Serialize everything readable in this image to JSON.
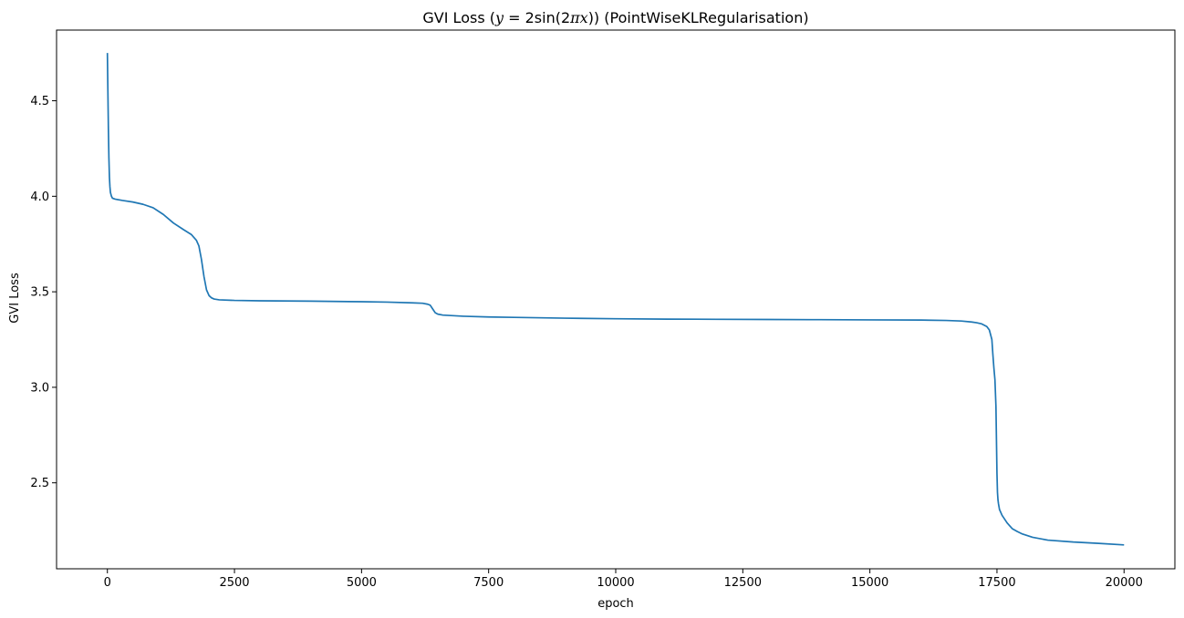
{
  "chart_data": {
    "type": "line",
    "title": {
      "prefix": "GVI Loss (",
      "math_y": "y",
      "math_mid": " = 2sin(2",
      "math_pi": "π",
      "math_x": "x",
      "suffix": ")) (PointWiseKLRegularisation)"
    },
    "xlabel": "epoch",
    "ylabel": "GVI Loss",
    "xlim": [
      -1000,
      21000
    ],
    "ylim": [
      2.05,
      4.87
    ],
    "xticks": [
      0,
      2500,
      5000,
      7500,
      10000,
      12500,
      15000,
      17500,
      20000
    ],
    "xtick_labels": [
      "0",
      "2500",
      "5000",
      "7500",
      "10000",
      "12500",
      "15000",
      "17500",
      "20000"
    ],
    "yticks": [
      2.5,
      3.0,
      3.5,
      4.0,
      4.5
    ],
    "ytick_labels": [
      "2.5",
      "3.0",
      "3.5",
      "4.0",
      "4.5"
    ],
    "grid": false,
    "color": "#1f77b4",
    "series": [
      {
        "x": [
          0,
          10,
          20,
          30,
          40,
          50,
          60,
          80,
          100,
          150,
          300,
          500,
          700,
          900,
          1100,
          1300,
          1500,
          1650,
          1750,
          1800,
          1850,
          1900,
          1950,
          2000,
          2050,
          2100,
          2200,
          2500,
          3000,
          4000,
          5000,
          5500,
          6000,
          6200,
          6300,
          6350,
          6400,
          6450,
          6500,
          6600,
          7000,
          7500,
          8000,
          9000,
          10000,
          11000,
          12000,
          13000,
          14000,
          15000,
          16000,
          16500,
          16800,
          17000,
          17100,
          17200,
          17300,
          17350,
          17400,
          17420,
          17440,
          17460,
          17480,
          17500,
          17510,
          17520,
          17530,
          17540,
          17550,
          17600,
          17700,
          17800,
          17900,
          18000,
          18200,
          18500,
          19000,
          19500,
          20000
        ],
        "y": [
          4.75,
          4.55,
          4.35,
          4.2,
          4.1,
          4.05,
          4.02,
          4.0,
          3.99,
          3.985,
          3.978,
          3.97,
          3.958,
          3.94,
          3.905,
          3.86,
          3.825,
          3.8,
          3.77,
          3.74,
          3.67,
          3.58,
          3.51,
          3.48,
          3.468,
          3.462,
          3.458,
          3.455,
          3.453,
          3.451,
          3.448,
          3.446,
          3.442,
          3.44,
          3.435,
          3.43,
          3.41,
          3.39,
          3.383,
          3.378,
          3.372,
          3.368,
          3.366,
          3.362,
          3.359,
          3.357,
          3.356,
          3.355,
          3.354,
          3.353,
          3.352,
          3.35,
          3.347,
          3.342,
          3.338,
          3.332,
          3.318,
          3.3,
          3.25,
          3.17,
          3.1,
          3.04,
          2.9,
          2.55,
          2.45,
          2.41,
          2.39,
          2.375,
          2.36,
          2.33,
          2.29,
          2.26,
          2.245,
          2.232,
          2.215,
          2.2,
          2.19,
          2.183,
          2.175
        ]
      }
    ]
  }
}
